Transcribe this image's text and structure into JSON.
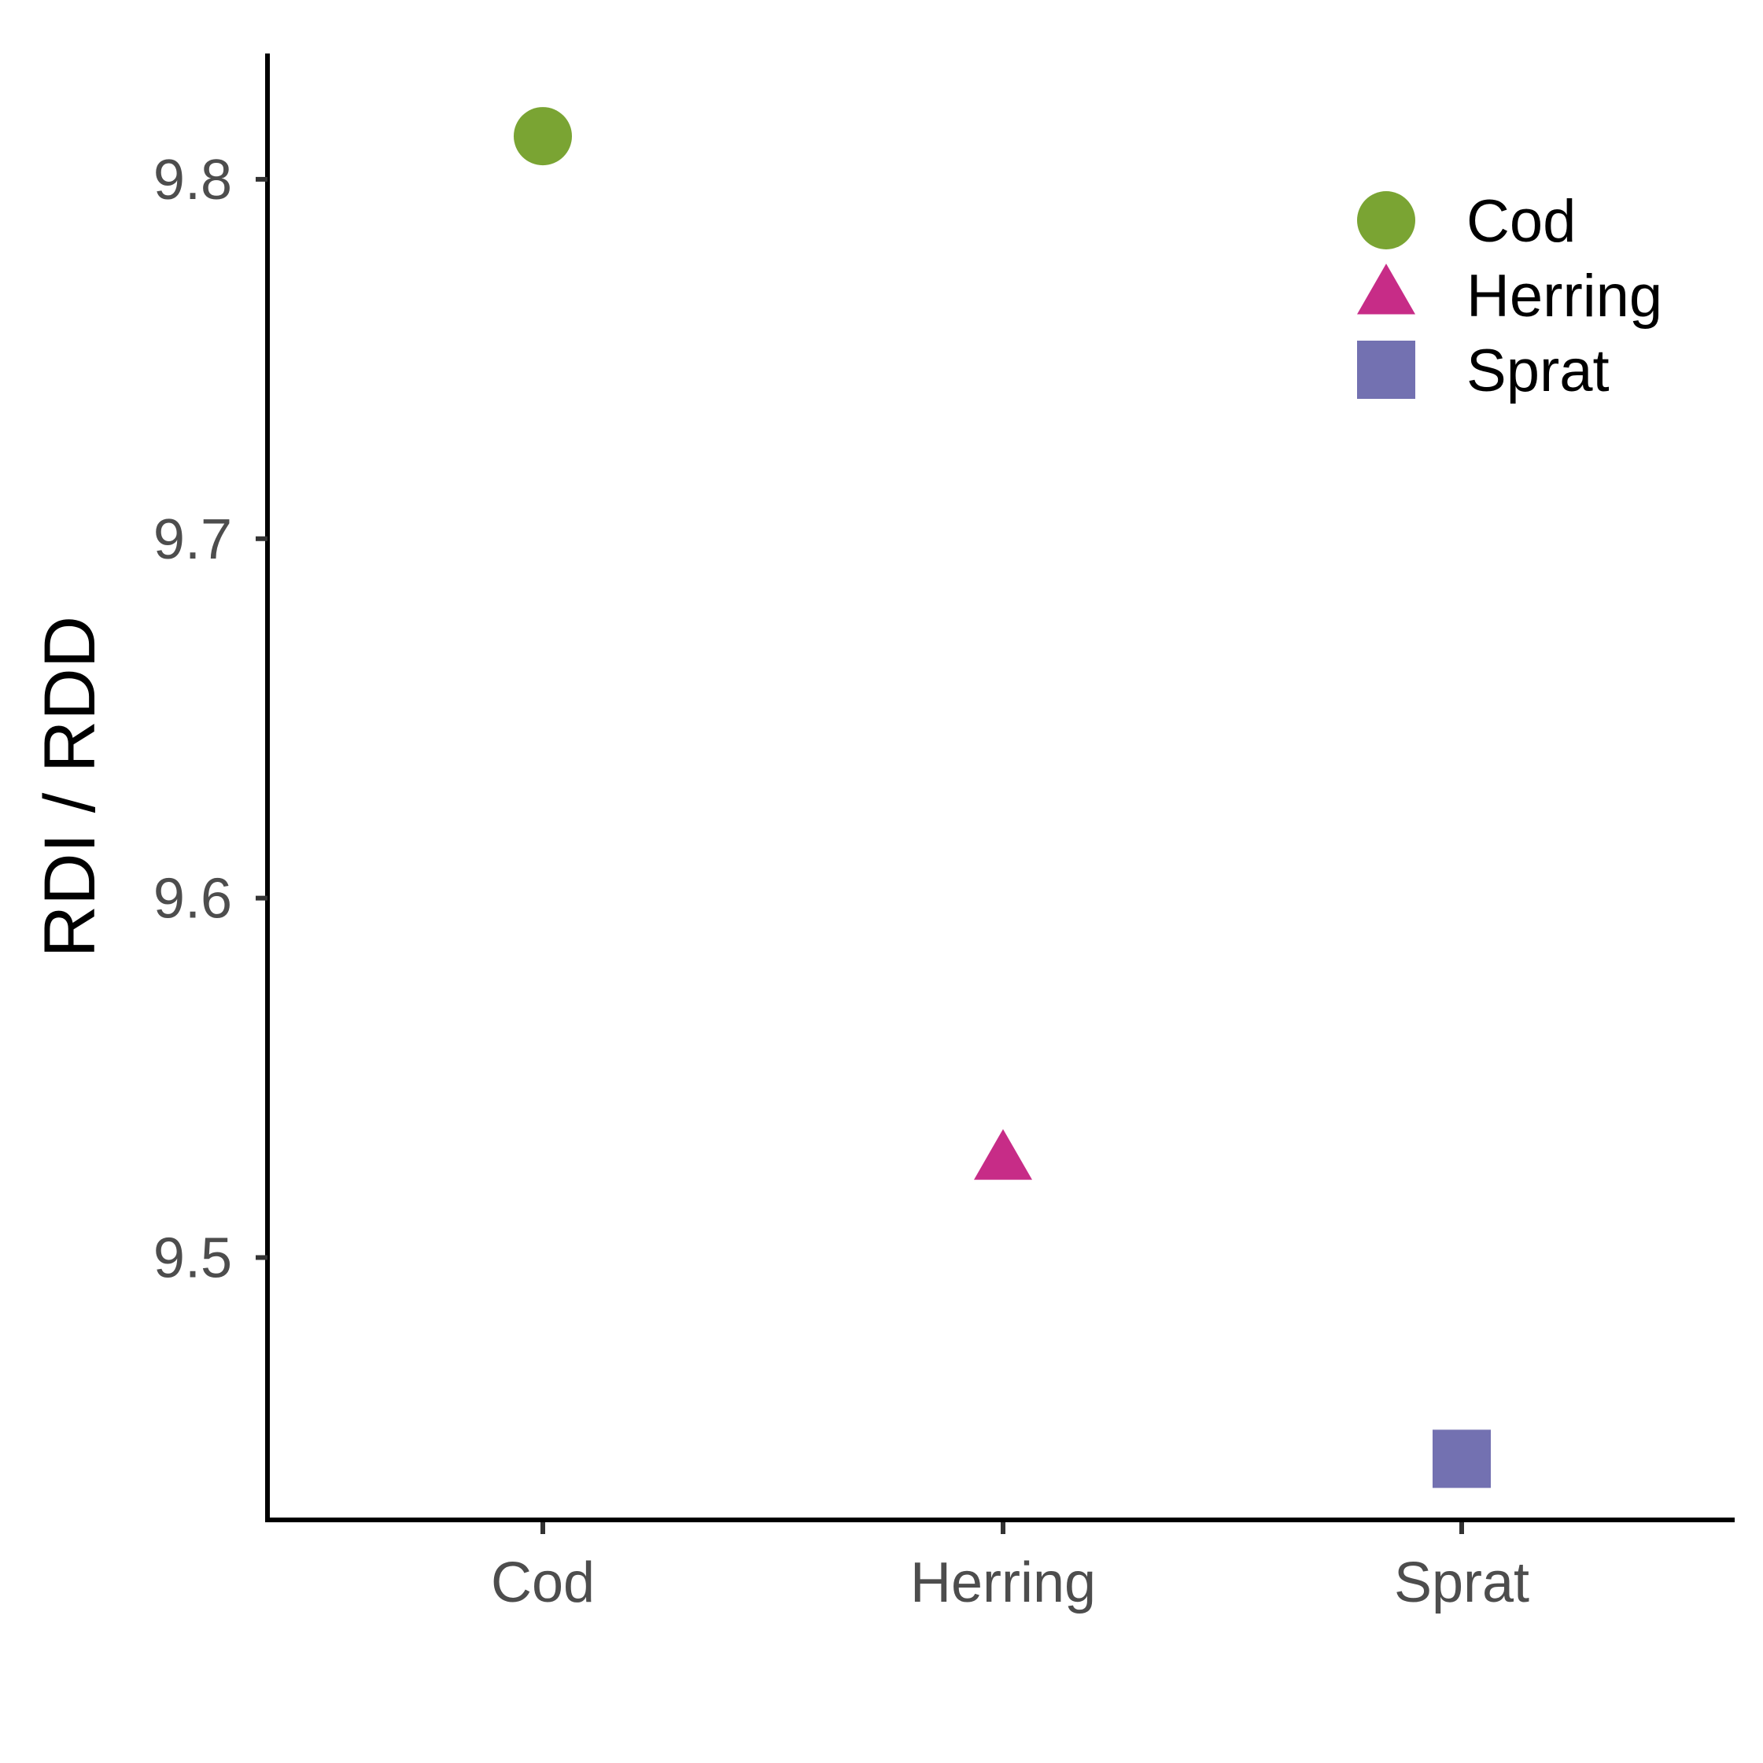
{
  "chart_data": {
    "type": "scatter",
    "categories": [
      "Cod",
      "Herring",
      "Sprat"
    ],
    "series": [
      {
        "name": "Cod",
        "category": "Cod",
        "value": 9.812,
        "shape": "circle",
        "color": "#7aa433"
      },
      {
        "name": "Herring",
        "category": "Herring",
        "value": 9.527,
        "shape": "triangle",
        "color": "#c72c87"
      },
      {
        "name": "Sprat",
        "category": "Sprat",
        "value": 9.444,
        "shape": "square",
        "color": "#7371b1"
      }
    ],
    "title": "",
    "xlabel": "",
    "ylabel": "RDI / RDD",
    "yticks": [
      "9.5",
      "9.6",
      "9.7",
      "9.8"
    ],
    "ylim": [
      9.427,
      9.835
    ],
    "grid": false,
    "legend_position": "top-right"
  }
}
